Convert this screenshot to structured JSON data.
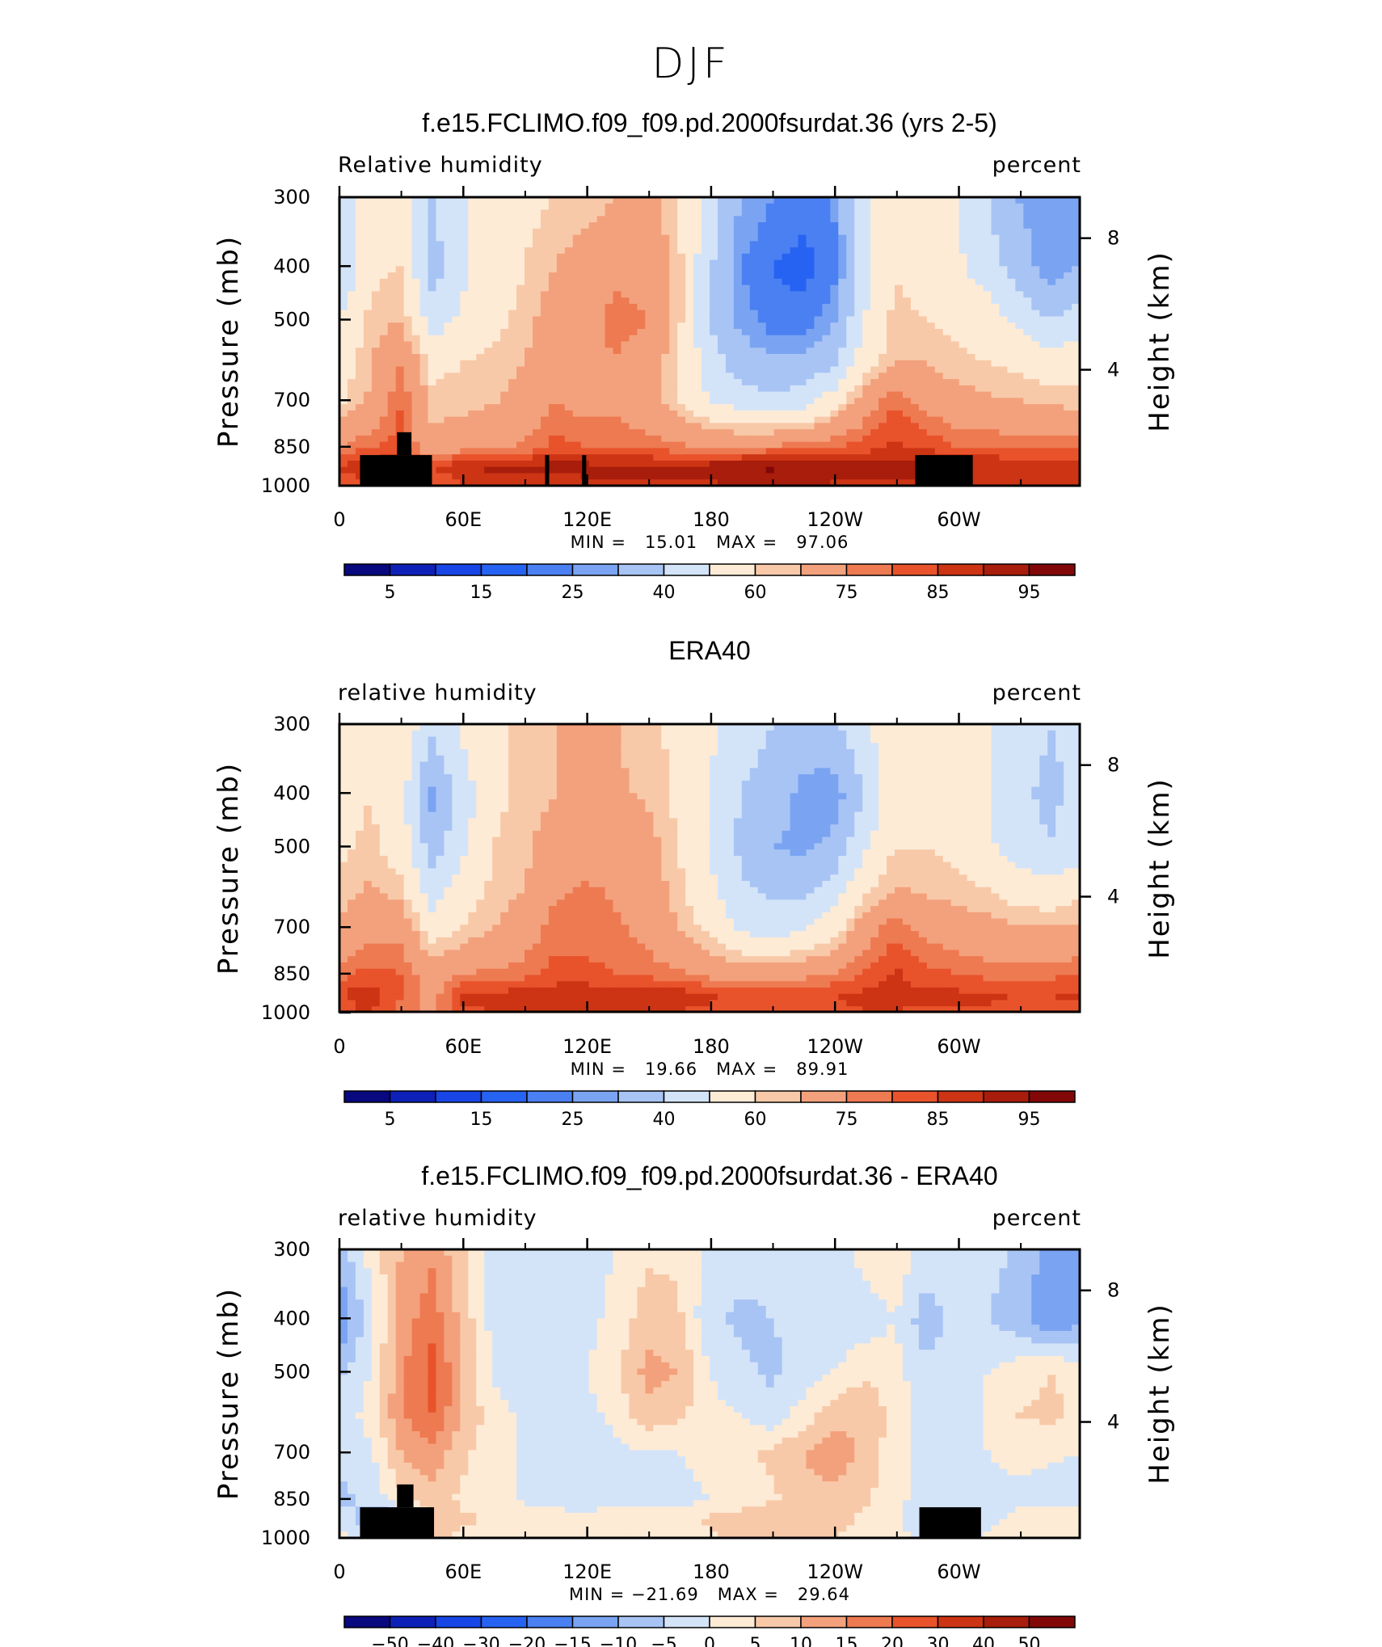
{
  "figure_title": "DJF",
  "colors": {
    "scale": [
      "#08087f",
      "#0d21b8",
      "#1846e6",
      "#2763f2",
      "#4a80f2",
      "#7aa4f2",
      "#a8c4f5",
      "#d4e4f8",
      "#fdebd6",
      "#f8c9a8",
      "#f3a17c",
      "#ee7a52",
      "#e8532b",
      "#cc3414",
      "#a81d0b",
      "#820808"
    ],
    "land": "#000000"
  },
  "panels": [
    {
      "title": "f.e15.FCLIMO.f09_f09.pd.2000fsurdat.36 (yrs 2-5)",
      "left_label": "Relative humidity",
      "right_label": "percent",
      "stats": "MIN =   15.01   MAX =   97.06",
      "colorbar_labels": [
        "5",
        "15",
        "25",
        "40",
        "60",
        "75",
        "85",
        "95"
      ]
    },
    {
      "title": "ERA40",
      "left_label": "relative humidity",
      "right_label": "percent",
      "stats": "MIN =   19.66   MAX =   89.91",
      "colorbar_labels": [
        "5",
        "15",
        "25",
        "40",
        "60",
        "75",
        "85",
        "95"
      ]
    },
    {
      "title": "f.e15.FCLIMO.f09_f09.pd.2000fsurdat.36 - ERA40",
      "left_label": "relative humidity",
      "right_label": "percent",
      "stats": "MIN = −21.69   MAX =   29.64",
      "colorbar_labels": [
        "−50",
        "−40",
        "−30",
        "−20",
        "−15",
        "−10",
        "−5",
        "0",
        "5",
        "10",
        "15",
        "20",
        "30",
        "40",
        "50"
      ]
    }
  ],
  "chart_data": [
    {
      "type": "heatmap",
      "title": "f.e15.FCLIMO.f09_f09.pd.2000fsurdat.36 (yrs 2-5)",
      "variable": "Relative humidity",
      "units": "percent",
      "xlabel": "",
      "ylabel": "Pressure (mb)",
      "y2label": "Height (km)",
      "x_ticks": [
        "0",
        "60E",
        "120E",
        "180",
        "120W",
        "60W"
      ],
      "y_ticks": [
        "300",
        "400",
        "500",
        "700",
        "850",
        "1000"
      ],
      "y2_ticks": [
        "8",
        "4"
      ],
      "min": 15.01,
      "max": 97.06,
      "levels": [
        5,
        10,
        15,
        20,
        25,
        30,
        40,
        50,
        60,
        65,
        75,
        80,
        85,
        90,
        95
      ],
      "lon": [
        0,
        15,
        30,
        45,
        60,
        75,
        90,
        105,
        120,
        135,
        150,
        165,
        180,
        195,
        210,
        225,
        240,
        255,
        270,
        285,
        300,
        315,
        330,
        345,
        360
      ],
      "lev": [
        300,
        400,
        500,
        600,
        700,
        850,
        925,
        1000
      ],
      "rows": [
        [
          45,
          55,
          55,
          40,
          48,
          55,
          58,
          60,
          62,
          65,
          68,
          60,
          45,
          30,
          25,
          22,
          25,
          45,
          60,
          55,
          50,
          40,
          30,
          25,
          30
        ],
        [
          40,
          58,
          60,
          35,
          48,
          55,
          60,
          65,
          70,
          72,
          72,
          62,
          42,
          25,
          20,
          18,
          22,
          45,
          60,
          55,
          52,
          45,
          35,
          25,
          30
        ],
        [
          50,
          62,
          65,
          45,
          52,
          58,
          62,
          70,
          72,
          78,
          75,
          62,
          40,
          28,
          22,
          22,
          28,
          50,
          62,
          60,
          58,
          55,
          48,
          40,
          45
        ],
        [
          55,
          65,
          75,
          58,
          60,
          62,
          65,
          72,
          74,
          74,
          70,
          60,
          45,
          35,
          32,
          32,
          38,
          55,
          65,
          65,
          62,
          60,
          58,
          55,
          58
        ],
        [
          58,
          66,
          80,
          62,
          62,
          64,
          68,
          75,
          72,
          72,
          68,
          60,
          50,
          45,
          42,
          45,
          55,
          70,
          80,
          72,
          68,
          66,
          65,
          64,
          62
        ],
        [
          75,
          80,
          82,
          68,
          72,
          74,
          76,
          82,
          80,
          80,
          78,
          76,
          74,
          74,
          76,
          78,
          80,
          82,
          86,
          84,
          80,
          80,
          79,
          78,
          78
        ],
        [
          86,
          88,
          90,
          85,
          90,
          91,
          91,
          92,
          92,
          92,
          92,
          92,
          93,
          95,
          96,
          95,
          94,
          92,
          93,
          92,
          91,
          90,
          90,
          90,
          90
        ],
        [
          82,
          84,
          84,
          80,
          84,
          86,
          86,
          86,
          88,
          88,
          88,
          88,
          89,
          90,
          90,
          90,
          89,
          88,
          88,
          88,
          87,
          86,
          86,
          86,
          86
        ]
      ],
      "land": [
        [
          10,
          45,
          880,
          1000
        ],
        [
          28,
          35,
          800,
          880
        ],
        [
          100,
          102,
          880,
          1000
        ],
        [
          118,
          120,
          880,
          1000
        ],
        [
          280,
          308,
          880,
          1000
        ]
      ]
    },
    {
      "type": "heatmap",
      "title": "ERA40",
      "variable": "relative humidity",
      "units": "percent",
      "xlabel": "",
      "ylabel": "Pressure (mb)",
      "y2label": "Height (km)",
      "x_ticks": [
        "0",
        "60E",
        "120E",
        "180",
        "120W",
        "60W"
      ],
      "y_ticks": [
        "300",
        "400",
        "500",
        "700",
        "850",
        "1000"
      ],
      "y2_ticks": [
        "8",
        "4"
      ],
      "min": 19.66,
      "max": 89.91,
      "levels": [
        5,
        10,
        15,
        20,
        25,
        30,
        40,
        50,
        60,
        65,
        75,
        80,
        85,
        90,
        95
      ],
      "lon": [
        0,
        15,
        30,
        45,
        60,
        75,
        90,
        105,
        120,
        135,
        150,
        165,
        180,
        195,
        210,
        225,
        240,
        255,
        270,
        285,
        300,
        315,
        330,
        345,
        360
      ],
      "lev": [
        300,
        400,
        500,
        600,
        700,
        850,
        925,
        1000
      ],
      "rows": [
        [
          55,
          60,
          58,
          42,
          52,
          58,
          62,
          65,
          65,
          65,
          62,
          58,
          52,
          45,
          40,
          35,
          38,
          48,
          58,
          58,
          55,
          50,
          45,
          40,
          42
        ],
        [
          55,
          60,
          55,
          28,
          45,
          58,
          62,
          65,
          66,
          66,
          64,
          58,
          50,
          40,
          35,
          28,
          25,
          40,
          58,
          58,
          55,
          50,
          42,
          38,
          42
        ],
        [
          58,
          62,
          55,
          35,
          48,
          60,
          63,
          70,
          72,
          70,
          68,
          60,
          50,
          38,
          30,
          28,
          32,
          48,
          60,
          60,
          58,
          52,
          45,
          40,
          45
        ],
        [
          62,
          66,
          62,
          45,
          55,
          62,
          65,
          74,
          76,
          74,
          70,
          62,
          52,
          42,
          38,
          38,
          45,
          58,
          66,
          64,
          62,
          60,
          56,
          54,
          58
        ],
        [
          66,
          72,
          72,
          55,
          60,
          65,
          70,
          78,
          76,
          76,
          72,
          65,
          58,
          48,
          45,
          48,
          55,
          70,
          78,
          72,
          70,
          68,
          66,
          65,
          66
        ],
        [
          78,
          82,
          80,
          70,
          75,
          76,
          78,
          82,
          82,
          80,
          78,
          76,
          72,
          70,
          70,
          72,
          75,
          80,
          86,
          82,
          80,
          78,
          78,
          78,
          80
        ],
        [
          85,
          88,
          80,
          72,
          86,
          86,
          87,
          88,
          88,
          88,
          88,
          87,
          86,
          84,
          84,
          84,
          85,
          86,
          87,
          86,
          86,
          86,
          85,
          85,
          86
        ],
        [
          82,
          86,
          78,
          72,
          84,
          85,
          86,
          86,
          86,
          86,
          86,
          85,
          84,
          83,
          83,
          83,
          84,
          85,
          85,
          84,
          84,
          84,
          83,
          83,
          84
        ]
      ]
    },
    {
      "type": "heatmap",
      "title": "f.e15.FCLIMO.f09_f09.pd.2000fsurdat.36 - ERA40",
      "variable": "relative humidity",
      "units": "percent",
      "xlabel": "",
      "ylabel": "Pressure (mb)",
      "y2label": "Height (km)",
      "x_ticks": [
        "0",
        "60E",
        "120E",
        "180",
        "120W",
        "60W"
      ],
      "y_ticks": [
        "300",
        "400",
        "500",
        "700",
        "850",
        "1000"
      ],
      "y2_ticks": [
        "8",
        "4"
      ],
      "min": -21.69,
      "max": 29.64,
      "levels": [
        -50,
        -40,
        -30,
        -20,
        -15,
        -10,
        -5,
        0,
        5,
        10,
        15,
        20,
        30,
        40,
        50
      ],
      "lon": [
        0,
        15,
        30,
        45,
        60,
        75,
        90,
        105,
        120,
        135,
        150,
        165,
        180,
        195,
        210,
        225,
        240,
        255,
        270,
        285,
        300,
        315,
        330,
        345,
        360
      ],
      "lev": [
        300,
        400,
        500,
        600,
        700,
        850,
        925,
        1000
      ],
      "rows": [
        [
          -8,
          2,
          10,
          14,
          6,
          -2,
          -3,
          -3,
          -2,
          0,
          4,
          4,
          -2,
          -3,
          -4,
          -3,
          -3,
          2,
          4,
          -2,
          -2,
          -3,
          -6,
          -12,
          -10
        ],
        [
          -15,
          -2,
          12,
          18,
          8,
          -2,
          -4,
          -3,
          -2,
          2,
          8,
          6,
          -4,
          -6,
          -5,
          -4,
          -4,
          -3,
          0,
          -8,
          -3,
          -5,
          -8,
          -14,
          -12
        ],
        [
          -6,
          0,
          14,
          22,
          10,
          -1,
          -3,
          -2,
          0,
          4,
          12,
          10,
          0,
          -4,
          -6,
          -3,
          0,
          4,
          2,
          -4,
          -2,
          0,
          3,
          5,
          4
        ],
        [
          -3,
          2,
          14,
          20,
          10,
          2,
          -1,
          -2,
          -2,
          2,
          8,
          6,
          2,
          0,
          -3,
          2,
          8,
          10,
          3,
          -2,
          -1,
          0,
          5,
          6,
          4
        ],
        [
          -4,
          -1,
          10,
          14,
          6,
          2,
          -1,
          -3,
          -2,
          -2,
          0,
          0,
          2,
          4,
          6,
          10,
          14,
          8,
          2,
          -2,
          -1,
          0,
          2,
          1,
          0
        ],
        [
          -6,
          -4,
          4,
          8,
          4,
          2,
          -1,
          -3,
          -4,
          -2,
          -2,
          -2,
          0,
          2,
          4,
          8,
          8,
          6,
          2,
          -3,
          -2,
          -2,
          -2,
          -3,
          -3
        ],
        [
          -2,
          -8,
          -12,
          8,
          6,
          4,
          3,
          3,
          3,
          3,
          3,
          4,
          6,
          8,
          10,
          10,
          8,
          4,
          2,
          -6,
          -4,
          -2,
          2,
          4,
          3
        ],
        [
          2,
          -4,
          -8,
          6,
          4,
          3,
          2,
          2,
          2,
          2,
          2,
          3,
          4,
          6,
          6,
          6,
          5,
          3,
          2,
          -2,
          -2,
          1,
          2,
          3,
          3
        ]
      ],
      "land": [
        [
          10,
          46,
          880,
          1000
        ],
        [
          28,
          36,
          800,
          880
        ],
        [
          282,
          312,
          880,
          1000
        ]
      ]
    }
  ]
}
